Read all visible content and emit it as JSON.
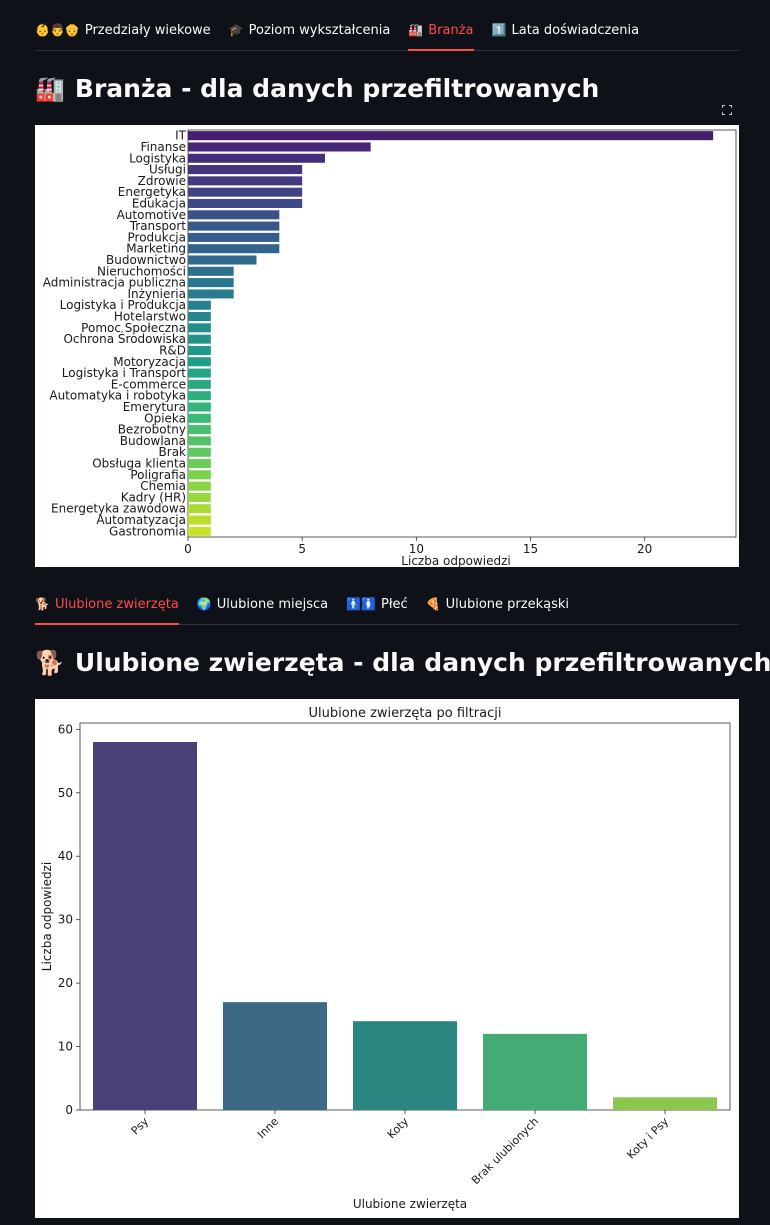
{
  "tabs_top": [
    {
      "emoji": "👶👨👴",
      "label": "Przedziały wiekowe",
      "active": false
    },
    {
      "emoji": "🎓",
      "label": "Poziom wykształcenia",
      "active": false
    },
    {
      "emoji": "🏭",
      "label": "Branża",
      "active": true
    },
    {
      "emoji": "1️⃣",
      "label": "Lata doświadczenia",
      "active": false
    }
  ],
  "section1": {
    "emoji": "🏭",
    "title": "Branża - dla danych przefiltrowanych"
  },
  "tabs_bottom": [
    {
      "emoji": "🐕",
      "label": "Ulubione zwierzęta",
      "active": true
    },
    {
      "emoji": "🌍",
      "label": "Ulubione miejsca",
      "active": false
    },
    {
      "emoji": "🚹🚺",
      "label": "Płeć",
      "active": false
    },
    {
      "emoji": "🍕",
      "label": "Ulubione przekąski",
      "active": false
    }
  ],
  "section2": {
    "emoji": "🐕",
    "title": "Ulubione zwierzęta - dla danych przefiltrowanych"
  },
  "chart_data": [
    {
      "type": "bar",
      "orientation": "horizontal",
      "title": "",
      "xlabel": "Liczba odpowiedzi",
      "ylabel": "",
      "xlim": [
        0,
        24
      ],
      "xticks": [
        0,
        5,
        10,
        15,
        20
      ],
      "palette": "viridis",
      "categories": [
        "IT",
        "Finanse",
        "Logistyka",
        "Usługi",
        "Zdrowie",
        "Energetyka",
        "Edukacja",
        "Automotive",
        "Transport",
        "Produkcja",
        "Marketing",
        "Budownictwo",
        "Nieruchomości",
        "Administracja publiczna",
        "Inżynieria",
        "Logistyka i Produkcja",
        "Hotelarstwo",
        "Pomoc Społeczna",
        "Ochrona Środowiska",
        "R&D",
        "Motoryzacja",
        "Logistyka i Transport",
        "E-commerce",
        "Automatyka i robotyka",
        "Emerytura",
        "Opieka",
        "Bezrobotny",
        "Budowlana",
        "Brak",
        "Obsługa klienta",
        "Poligrafia",
        "Chemia",
        "Kadry (HR)",
        "Energetyka zawodowa",
        "Automatyzacja",
        "Gastronomia"
      ],
      "values": [
        23,
        8,
        6,
        5,
        5,
        5,
        5,
        4,
        4,
        4,
        4,
        3,
        2,
        2,
        2,
        1,
        1,
        1,
        1,
        1,
        1,
        1,
        1,
        1,
        1,
        1,
        1,
        1,
        1,
        1,
        1,
        1,
        1,
        1,
        1,
        1
      ]
    },
    {
      "type": "bar",
      "orientation": "vertical",
      "title": "Ulubione zwierzęta po filtracji",
      "xlabel": "Ulubione zwierzęta",
      "ylabel": "Liczba odpowiedzi",
      "ylim": [
        0,
        61
      ],
      "yticks": [
        0,
        10,
        20,
        30,
        40,
        50,
        60
      ],
      "categories": [
        "Psy",
        "Inne",
        "Koty",
        "Brak ulubionych",
        "Koty i Psy"
      ],
      "values": [
        58,
        17,
        14,
        12,
        2
      ],
      "colors": [
        "#4b3f7a",
        "#3e6986",
        "#2a8680",
        "#45ab74",
        "#8bc650"
      ]
    }
  ]
}
